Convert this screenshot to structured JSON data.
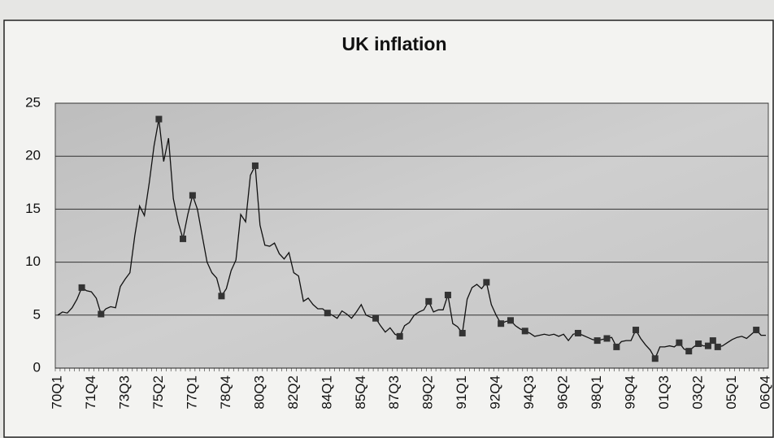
{
  "chart_data": {
    "type": "line",
    "title": "UK inflation",
    "categories": [
      "70Q1",
      null,
      null,
      null,
      null,
      null,
      null,
      "71Q4",
      null,
      null,
      null,
      null,
      null,
      null,
      "73Q3",
      null,
      null,
      null,
      null,
      null,
      null,
      "75Q2",
      null,
      null,
      null,
      null,
      null,
      null,
      "77Q1",
      null,
      null,
      null,
      null,
      null,
      null,
      "78Q4",
      null,
      null,
      null,
      null,
      null,
      null,
      "80Q3",
      null,
      null,
      null,
      null,
      null,
      null,
      "82Q2",
      null,
      null,
      null,
      null,
      null,
      null,
      "84Q1",
      null,
      null,
      null,
      null,
      null,
      null,
      "85Q4",
      null,
      null,
      null,
      null,
      null,
      null,
      "87Q3",
      null,
      null,
      null,
      null,
      null,
      null,
      "89Q2",
      null,
      null,
      null,
      null,
      null,
      null,
      "91Q1",
      null,
      null,
      null,
      null,
      null,
      null,
      "92Q4",
      null,
      null,
      null,
      null,
      null,
      null,
      "94Q3",
      null,
      null,
      null,
      null,
      null,
      null,
      "96Q2",
      null,
      null,
      null,
      null,
      null,
      null,
      "98Q1",
      null,
      null,
      null,
      null,
      null,
      null,
      "99Q4",
      null,
      null,
      null,
      null,
      null,
      null,
      "01Q3",
      null,
      null,
      null,
      null,
      null,
      null,
      "03Q2",
      null,
      null,
      null,
      null,
      null,
      null,
      "05Q1",
      null,
      null,
      null,
      null,
      null,
      null,
      "06Q4"
    ],
    "values": [
      5.0,
      5.3,
      5.2,
      5.7,
      6.5,
      7.6,
      7.3,
      7.2,
      6.6,
      5.1,
      5.6,
      5.8,
      5.7,
      7.7,
      8.4,
      9.0,
      12.5,
      15.3,
      14.4,
      17.5,
      21.0,
      23.5,
      19.5,
      21.7,
      16.0,
      13.8,
      12.2,
      14.5,
      16.3,
      15.0,
      12.5,
      10.0,
      9.0,
      8.5,
      6.8,
      7.5,
      9.2,
      10.2,
      14.5,
      13.8,
      18.2,
      19.1,
      13.5,
      11.6,
      11.5,
      11.8,
      10.8,
      10.3,
      10.9,
      9.0,
      8.7,
      6.3,
      6.6,
      6.0,
      5.6,
      5.6,
      5.2,
      5.0,
      4.7,
      5.4,
      5.1,
      4.7,
      5.3,
      6.0,
      5.0,
      4.8,
      4.7,
      4.0,
      3.4,
      3.8,
      3.2,
      3.0,
      4.0,
      4.3,
      5.0,
      5.3,
      5.5,
      6.3,
      5.3,
      5.5,
      5.5,
      6.9,
      4.2,
      3.9,
      3.3,
      6.5,
      7.6,
      7.9,
      7.5,
      8.1,
      6.0,
      5.0,
      4.2,
      4.4,
      4.5,
      4.0,
      3.7,
      3.5,
      3.3,
      3.0,
      3.1,
      3.2,
      3.1,
      3.2,
      3.0,
      3.2,
      2.6,
      3.2,
      3.3,
      3.1,
      2.9,
      2.7,
      2.6,
      2.7,
      2.8,
      2.9,
      2.0,
      2.5,
      2.6,
      2.6,
      3.6,
      2.8,
      2.2,
      1.7,
      0.9,
      2.0,
      2.0,
      2.1,
      2.0,
      2.4,
      1.8,
      1.6,
      2.0,
      2.3,
      2.1,
      2.1,
      2.6,
      2.0,
      2.1,
      2.4,
      2.7,
      2.9,
      3.0,
      2.8,
      3.2,
      3.6,
      3.1,
      3.1
    ],
    "markers": [
      5,
      9,
      21,
      26,
      28,
      34,
      41,
      56,
      66,
      71,
      77,
      81,
      84,
      89,
      92,
      94,
      97,
      108,
      112,
      114,
      116,
      120,
      124,
      129,
      131,
      133,
      135,
      136,
      137,
      145
    ],
    "color": "#111111",
    "marker_color": "#333333",
    "ylim": [
      0,
      25
    ],
    "yticks": [
      0,
      5,
      10,
      15,
      20,
      25
    ],
    "grid": true
  }
}
